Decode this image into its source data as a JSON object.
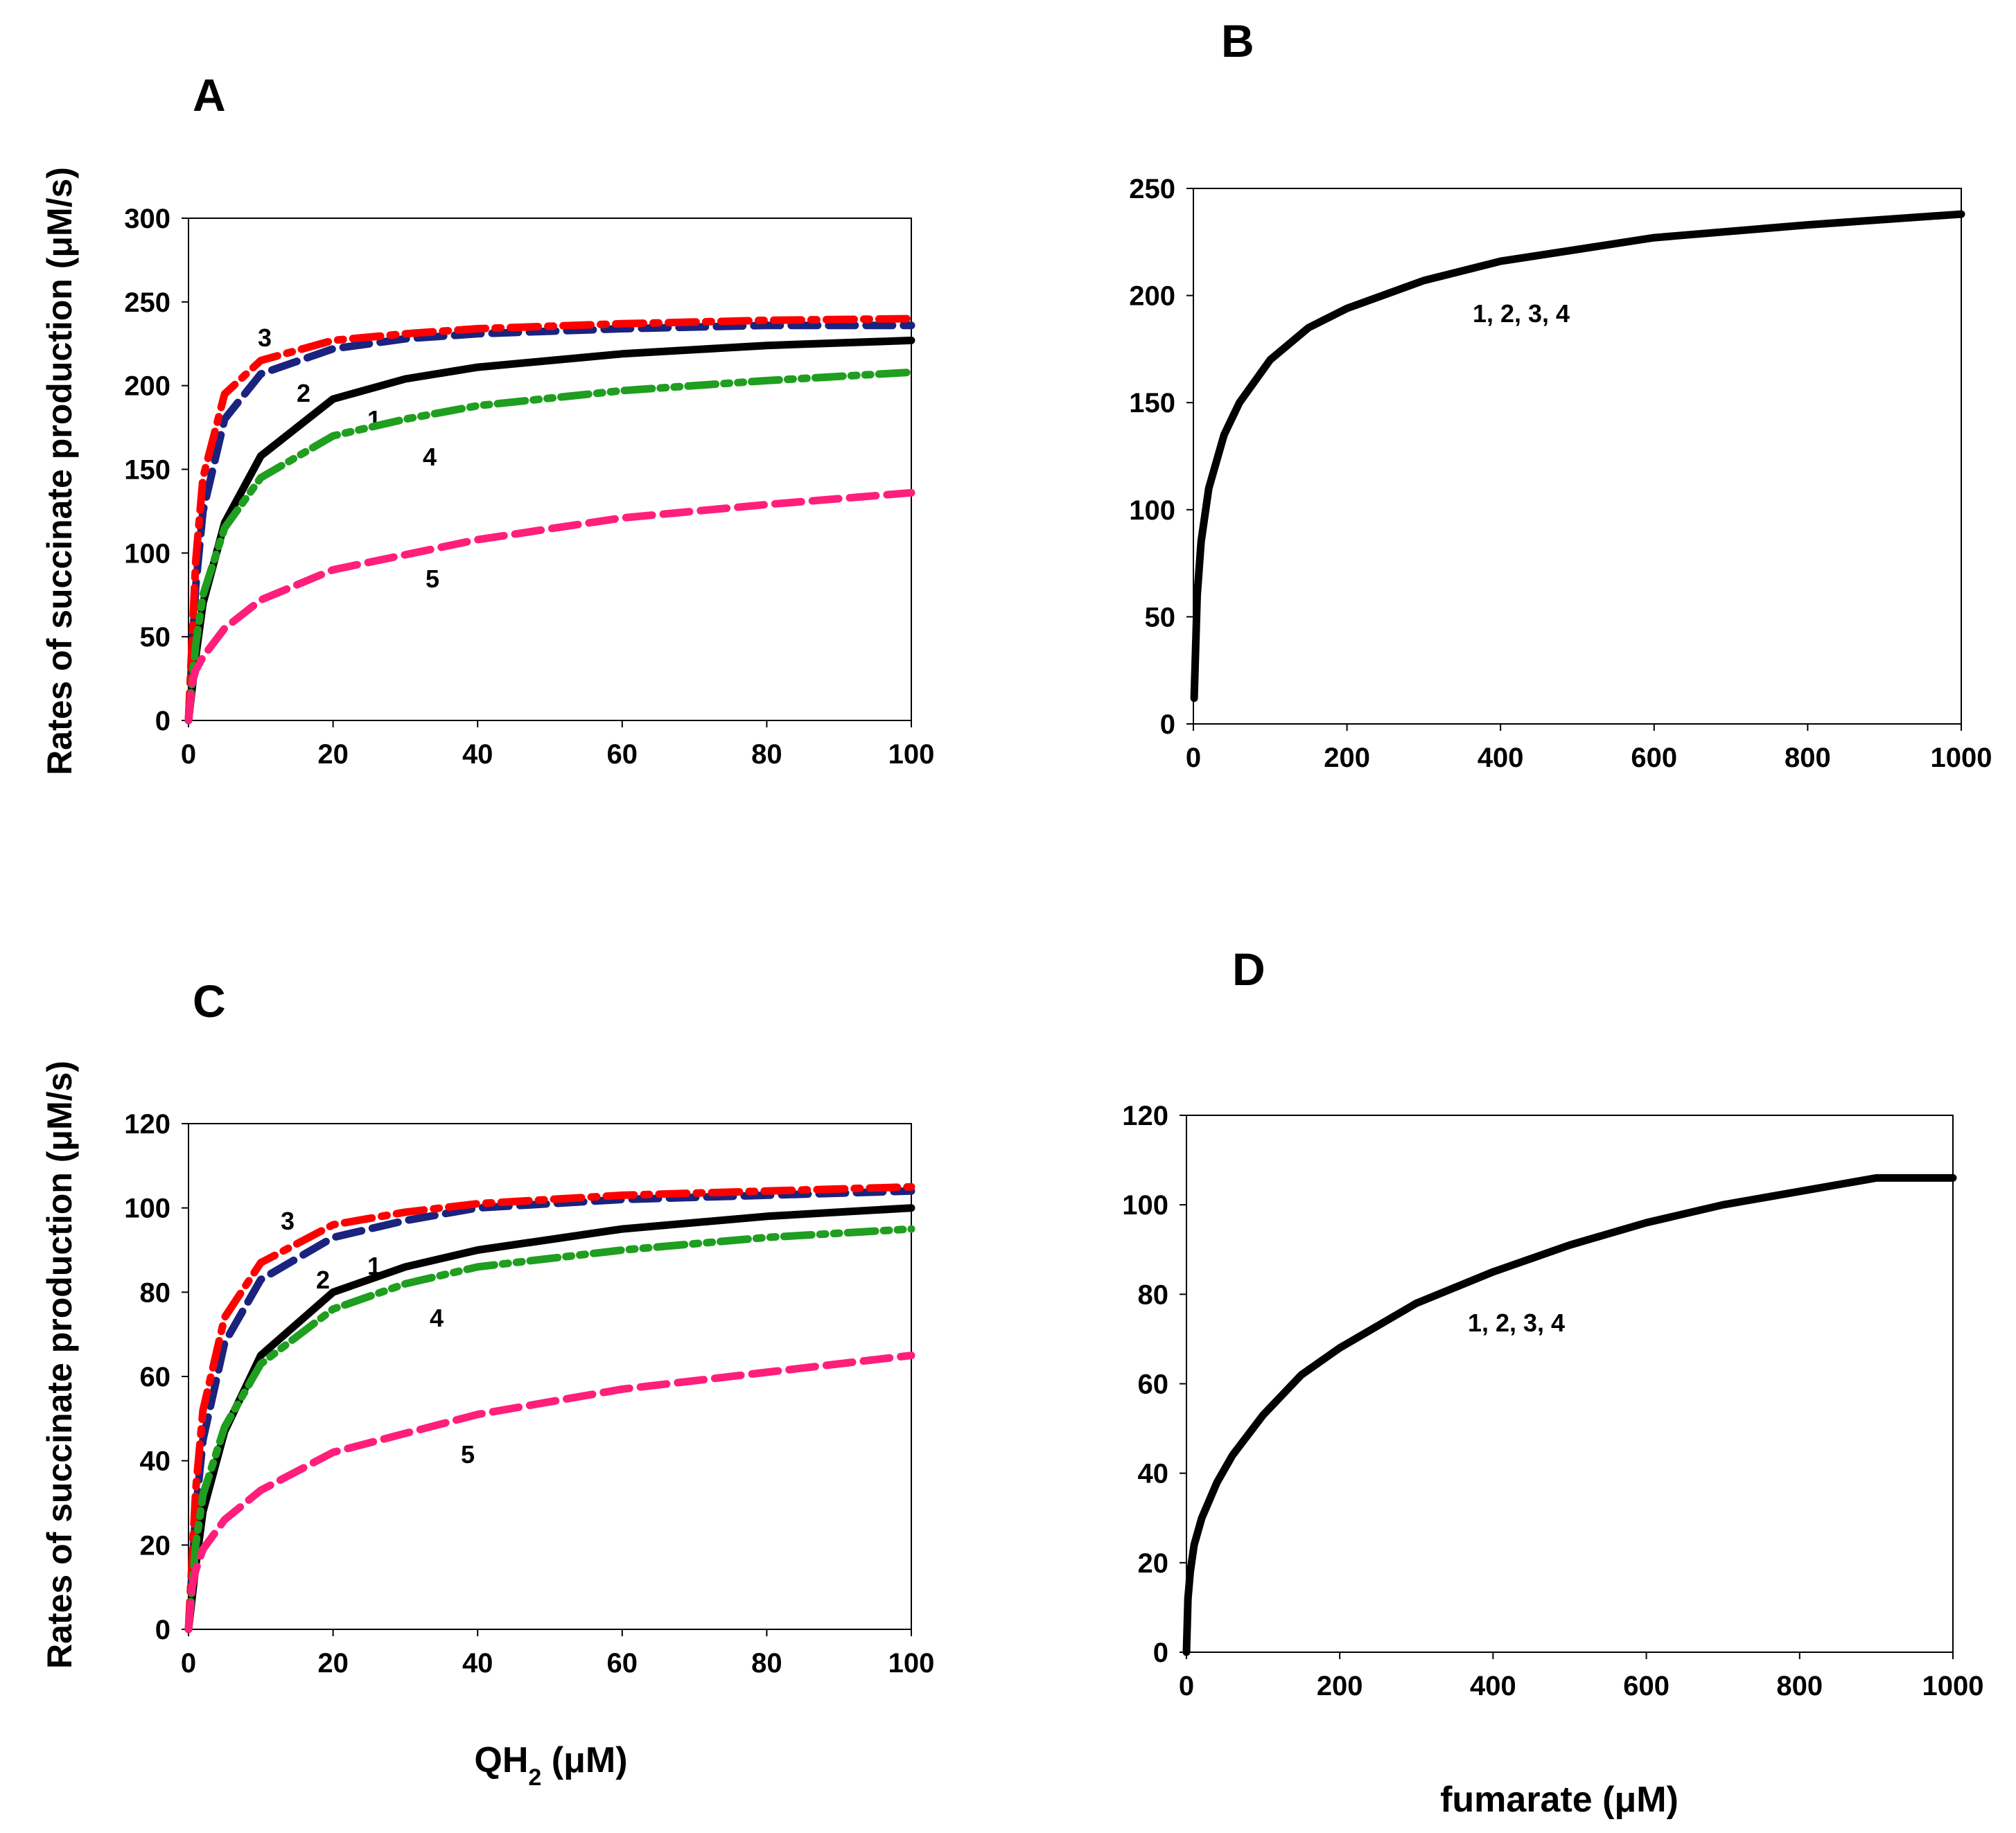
{
  "figure": {
    "ylabel_top": "Rates of succinate production (μM/s)",
    "ylabel_bottom": "Rates of succinate production (μM/s)"
  },
  "chart_data": [
    {
      "id": "A",
      "type": "line",
      "panel_label": "A",
      "xlabel": "",
      "ylabel": "Rates of succinate production (μM/s)",
      "xlim": [
        0,
        100
      ],
      "ylim": [
        0,
        300
      ],
      "xticks": [
        0,
        20,
        40,
        60,
        80,
        100
      ],
      "yticks": [
        0,
        50,
        100,
        150,
        200,
        250,
        300
      ],
      "grid": false,
      "series": [
        {
          "label": "1",
          "color": "#000000",
          "dash": "solid",
          "x": [
            0,
            1,
            2,
            5,
            10,
            20,
            30,
            40,
            60,
            80,
            100
          ],
          "y": [
            0,
            38,
            70,
            118,
            158,
            192,
            204,
            211,
            219,
            224,
            227
          ]
        },
        {
          "label": "2",
          "color": "#1a237e",
          "dash": "dash",
          "x": [
            0,
            1,
            2,
            5,
            10,
            20,
            30,
            40,
            60,
            80,
            100
          ],
          "y": [
            0,
            80,
            125,
            180,
            207,
            222,
            228,
            231,
            234,
            236,
            236
          ]
        },
        {
          "label": "3",
          "color": "#ff0000",
          "dash": "dashdot",
          "x": [
            0,
            1,
            2,
            5,
            10,
            20,
            30,
            40,
            60,
            80,
            100
          ],
          "y": [
            0,
            95,
            145,
            195,
            215,
            227,
            231,
            234,
            237,
            239,
            240
          ]
        },
        {
          "label": "4",
          "color": "#1f9e1f",
          "dash": "dashdotdot",
          "x": [
            0,
            1,
            2,
            5,
            10,
            20,
            30,
            40,
            60,
            80,
            100
          ],
          "y": [
            0,
            45,
            75,
            115,
            145,
            170,
            180,
            188,
            197,
            203,
            208
          ]
        },
        {
          "label": "5",
          "color": "#ff1f7a",
          "dash": "dash",
          "x": [
            0,
            0.5,
            1,
            2,
            5,
            10,
            20,
            40,
            60,
            80,
            100
          ],
          "y": [
            0,
            22,
            30,
            38,
            55,
            72,
            90,
            108,
            121,
            129,
            136
          ]
        }
      ]
    },
    {
      "id": "B",
      "type": "line",
      "panel_label": "B",
      "xlabel": "",
      "ylabel": "",
      "xlim": [
        0,
        1000
      ],
      "ylim": [
        0,
        250
      ],
      "xticks": [
        0,
        200,
        400,
        600,
        800,
        1000
      ],
      "yticks": [
        0,
        50,
        100,
        150,
        200,
        250
      ],
      "grid": false,
      "annotation": "1, 2, 3, 4",
      "series": [
        {
          "label": "1, 2, 3, 4",
          "color": "#000000",
          "dash": "solid",
          "x": [
            1,
            5,
            10,
            20,
            40,
            60,
            100,
            150,
            200,
            300,
            400,
            600,
            800,
            1000
          ],
          "y": [
            12,
            60,
            85,
            110,
            135,
            150,
            170,
            185,
            194,
            207,
            216,
            227,
            233,
            238
          ]
        }
      ]
    },
    {
      "id": "C",
      "type": "line",
      "panel_label": "C",
      "xlabel": "QH2 (μM)",
      "ylabel": "Rates of succinate production (μM/s)",
      "xlim": [
        0,
        100
      ],
      "ylim": [
        0,
        120
      ],
      "xticks": [
        0,
        20,
        40,
        60,
        80,
        100
      ],
      "yticks": [
        0,
        20,
        40,
        60,
        80,
        100,
        120
      ],
      "grid": false,
      "series": [
        {
          "label": "1",
          "color": "#000000",
          "dash": "solid",
          "x": [
            0,
            1,
            2,
            5,
            10,
            20,
            30,
            40,
            60,
            80,
            100
          ],
          "y": [
            0,
            15,
            28,
            47,
            65,
            80,
            86,
            90,
            95,
            98,
            100
          ]
        },
        {
          "label": "2",
          "color": "#1a237e",
          "dash": "dash",
          "x": [
            0,
            1,
            2,
            5,
            10,
            20,
            30,
            40,
            60,
            80,
            100
          ],
          "y": [
            0,
            28,
            45,
            68,
            83,
            93,
            97,
            100,
            102,
            103,
            104
          ]
        },
        {
          "label": "3",
          "color": "#ff0000",
          "dash": "dashdot",
          "x": [
            0,
            1,
            2,
            5,
            10,
            20,
            30,
            40,
            60,
            80,
            100
          ],
          "y": [
            0,
            33,
            52,
            74,
            87,
            96,
            99,
            101,
            103,
            104,
            105
          ]
        },
        {
          "label": "4",
          "color": "#1f9e1f",
          "dash": "dashdotdot",
          "x": [
            0,
            1,
            2,
            5,
            10,
            20,
            30,
            40,
            60,
            80,
            100
          ],
          "y": [
            0,
            20,
            32,
            48,
            63,
            76,
            82,
            86,
            90,
            93,
            95
          ]
        },
        {
          "label": "5",
          "color": "#ff1f7a",
          "dash": "dash",
          "x": [
            0,
            0.5,
            1,
            2,
            5,
            10,
            20,
            40,
            60,
            80,
            100
          ],
          "y": [
            0,
            10,
            14,
            19,
            26,
            33,
            42,
            51,
            57,
            61,
            65
          ]
        }
      ]
    },
    {
      "id": "D",
      "type": "line",
      "panel_label": "D",
      "xlabel": "fumarate (μM)",
      "ylabel": "",
      "xlim": [
        0,
        1000
      ],
      "ylim": [
        0,
        120
      ],
      "xticks": [
        0,
        200,
        400,
        600,
        800,
        1000
      ],
      "yticks": [
        0,
        20,
        40,
        60,
        80,
        100,
        120
      ],
      "grid": false,
      "annotation": "1, 2, 3, 4",
      "series": [
        {
          "label": "1, 2, 3, 4",
          "color": "#000000",
          "dash": "solid",
          "x": [
            0,
            2,
            5,
            10,
            20,
            40,
            60,
            100,
            150,
            200,
            300,
            400,
            500,
            600,
            700,
            800,
            900,
            1000
          ],
          "y": [
            0,
            12,
            18,
            24,
            30,
            38,
            44,
            53,
            62,
            68,
            78,
            85,
            91,
            96,
            100,
            103,
            106,
            106
          ]
        }
      ]
    }
  ]
}
